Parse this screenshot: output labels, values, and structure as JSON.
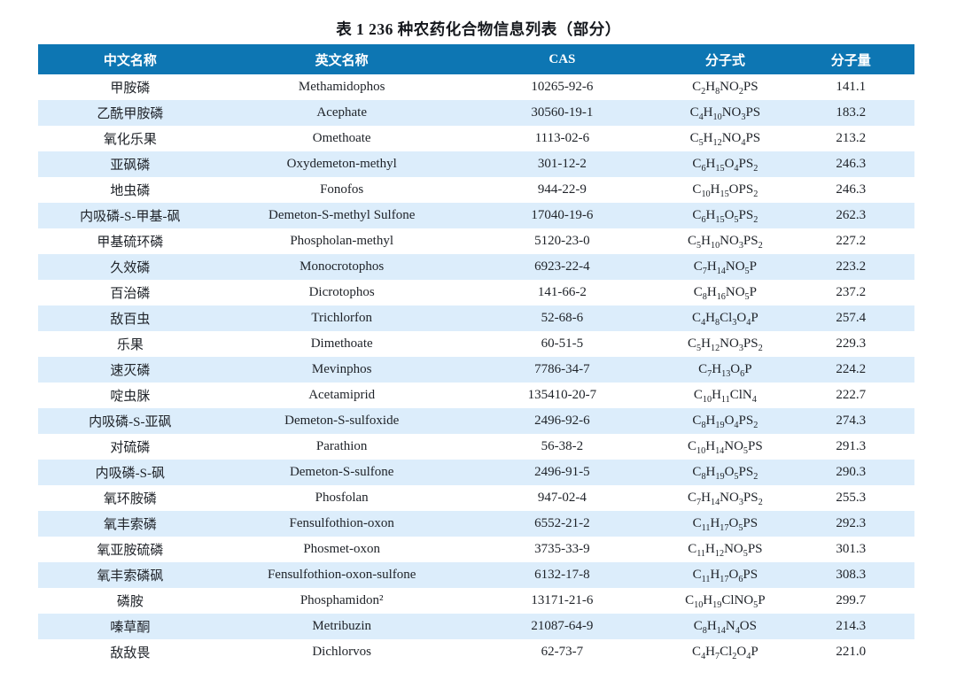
{
  "title": "表 1 236 种农药化合物信息列表（部分）",
  "colors": {
    "header_bg": "#0d76b3",
    "header_text": "#ffffff",
    "stripe_bg": "#dcedfb",
    "body_text": "#20242a"
  },
  "table": {
    "columns": [
      "中文名称",
      "英文名称",
      "CAS",
      "分子式",
      "分子量"
    ],
    "rows": [
      {
        "cn": "甲胺磷",
        "en": "Methamidophos",
        "cas": "10265-92-6",
        "formula": "C2H8NO2PS",
        "mw": "141.1"
      },
      {
        "cn": "乙酰甲胺磷",
        "en": "Acephate",
        "cas": "30560-19-1",
        "formula": "C4H10NO3PS",
        "mw": "183.2"
      },
      {
        "cn": "氧化乐果",
        "en": "Omethoate",
        "cas": "1113-02-6",
        "formula": "C5H12NO4PS",
        "mw": "213.2"
      },
      {
        "cn": "亚砜磷",
        "en": "Oxydemeton-methyl",
        "cas": "301-12-2",
        "formula": "C6H15O4PS2",
        "mw": "246.3"
      },
      {
        "cn": "地虫磷",
        "en": "Fonofos",
        "cas": "944-22-9",
        "formula": "C10H15OPS2",
        "mw": "246.3"
      },
      {
        "cn": "内吸磷-S-甲基-砜",
        "en": "Demeton-S-methyl Sulfone",
        "cas": "17040-19-6",
        "formula": "C6H15O5PS2",
        "mw": "262.3"
      },
      {
        "cn": "甲基硫环磷",
        "en": "Phospholan-methyl",
        "cas": "5120-23-0",
        "formula": "C5H10NO3PS2",
        "mw": "227.2"
      },
      {
        "cn": "久效磷",
        "en": "Monocrotophos",
        "cas": "6923-22-4",
        "formula": "C7H14NO5P",
        "mw": "223.2"
      },
      {
        "cn": "百治磷",
        "en": "Dicrotophos",
        "cas": "141-66-2",
        "formula": "C8H16NO5P",
        "mw": "237.2"
      },
      {
        "cn": "敌百虫",
        "en": "Trichlorfon",
        "cas": "52-68-6",
        "formula": "C4H8Cl3O4P",
        "mw": "257.4"
      },
      {
        "cn": "乐果",
        "en": "Dimethoate",
        "cas": "60-51-5",
        "formula": "C5H12NO3PS2",
        "mw": "229.3"
      },
      {
        "cn": "速灭磷",
        "en": "Mevinphos",
        "cas": "7786-34-7",
        "formula": "C7H13O6P",
        "mw": "224.2"
      },
      {
        "cn": "啶虫脒",
        "en": "Acetamiprid",
        "cas": "135410-20-7",
        "formula": "C10H11ClN4",
        "mw": "222.7"
      },
      {
        "cn": "内吸磷-S-亚砜",
        "en": "Demeton-S-sulfoxide",
        "cas": "2496-92-6",
        "formula": "C8H19O4PS2",
        "mw": "274.3"
      },
      {
        "cn": "对硫磷",
        "en": "Parathion",
        "cas": "56-38-2",
        "formula": "C10H14NO5PS",
        "mw": "291.3"
      },
      {
        "cn": "内吸磷-S-砜",
        "en": "Demeton-S-sulfone",
        "cas": "2496-91-5",
        "formula": "C8H19O5PS2",
        "mw": "290.3"
      },
      {
        "cn": "氧环胺磷",
        "en": "Phosfolan",
        "cas": "947-02-4",
        "formula": "C7H14NO3PS2",
        "mw": "255.3"
      },
      {
        "cn": "氧丰索磷",
        "en": "Fensulfothion-oxon",
        "cas": "6552-21-2",
        "formula": "C11H17O5PS",
        "mw": "292.3"
      },
      {
        "cn": "氧亚胺硫磷",
        "en": "Phosmet-oxon",
        "cas": "3735-33-9",
        "formula": "C11H12NO5PS",
        "mw": "301.3"
      },
      {
        "cn": "氧丰索磷砜",
        "en": "Fensulfothion-oxon-sulfone",
        "cas": "6132-17-8",
        "formula": "C11H17O6PS",
        "mw": "308.3"
      },
      {
        "cn": "磷胺",
        "en": "Phosphamidon²",
        "cas": "13171-21-6",
        "formula": "C10H19ClNO5P",
        "mw": "299.7"
      },
      {
        "cn": "嗪草酮",
        "en": "Metribuzin",
        "cas": "21087-64-9",
        "formula": "C8H14N4OS",
        "mw": "214.3"
      },
      {
        "cn": "敌敌畏",
        "en": "Dichlorvos",
        "cas": "62-73-7",
        "formula": "C4H7Cl2O4P",
        "mw": "221.0"
      }
    ]
  }
}
